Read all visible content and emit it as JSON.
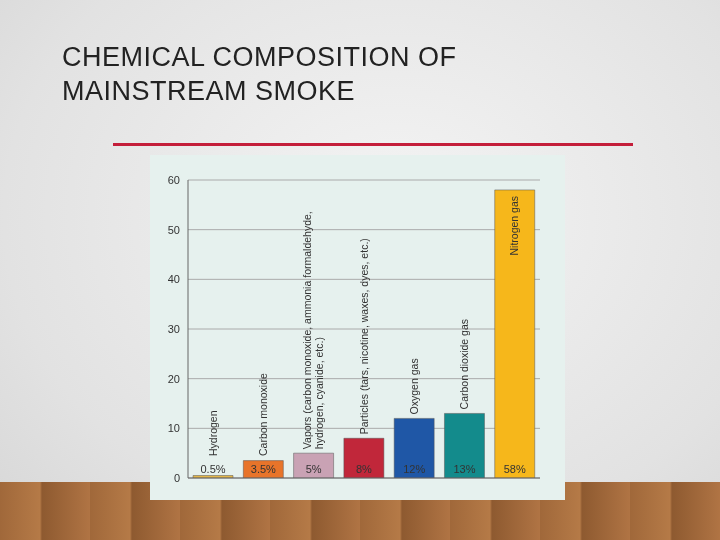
{
  "chart_data": {
    "type": "bar",
    "title": "CHEMICAL COMPOSITION OF MAINSTREAM SMOKE",
    "categories": [
      "Hydrogen",
      "Carbon monoxide",
      "Vapors (carbon monoxide, ammonia formaldehyde, hydrogen, cyanide, etc.)",
      "Particles (tars, nicotine, waxes, dyes, etc.)",
      "Oxygen gas",
      "Carbon dioxide gas",
      "Nitrogen gas"
    ],
    "values": [
      0.5,
      3.5,
      5,
      8,
      12,
      13,
      58
    ],
    "value_labels": [
      "0.5%",
      "3.5%",
      "5%",
      "8%",
      "12%",
      "13%",
      "58%"
    ],
    "colors": [
      "#e6b84a",
      "#e8742a",
      "#c9a2b4",
      "#c1273a",
      "#1f57a6",
      "#138b8c",
      "#f6b71b"
    ],
    "ylim": [
      0,
      60
    ],
    "yticks": [
      0,
      10,
      20,
      30,
      40,
      50,
      60
    ],
    "grid": true,
    "data_labels": true,
    "tick_labels": "y"
  }
}
